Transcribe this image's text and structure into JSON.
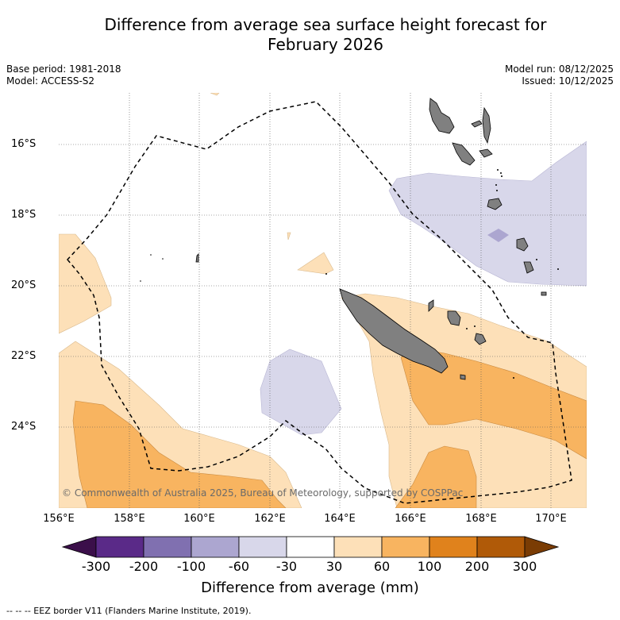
{
  "title_line1": "Difference from average sea surface height forecast for",
  "title_line2": "February 2026",
  "meta_left": [
    "Base period: 1981-2018",
    "Model: ACCESS-S2"
  ],
  "meta_right": [
    "Model run: 08/12/2025",
    "Issued: 10/12/2025"
  ],
  "lat_labels": [
    "16°S",
    "18°S",
    "20°S",
    "22°S",
    "24°S"
  ],
  "lon_labels": [
    "156°E",
    "158°E",
    "160°E",
    "162°E",
    "164°E",
    "166°E",
    "168°E",
    "170°E"
  ],
  "copyright": "© Commonwealth of Australia 2025, Bureau of Meteorology, supported by COSPPac",
  "colorbar": {
    "ticks": [
      "-300",
      "-200",
      "-100",
      "-60",
      "-30",
      "30",
      "60",
      "100",
      "200",
      "300"
    ],
    "colors": [
      "#3b0f4a",
      "#5a2a88",
      "#8070b0",
      "#aca6d0",
      "#d8d7ea",
      "#ffffff",
      "#fde0b8",
      "#f8b460",
      "#e0821c",
      "#b05a08",
      "#7a3c04"
    ],
    "title": "Difference from average (mm)"
  },
  "footnote": "--  --  -- EEZ border V11 (Flanders Marine Institute, 2019).",
  "legend_colors": {
    "land": "#808080",
    "light_purple": "#d8d7ea",
    "light_orange": "#fde0b8",
    "orange": "#f8b460"
  }
}
